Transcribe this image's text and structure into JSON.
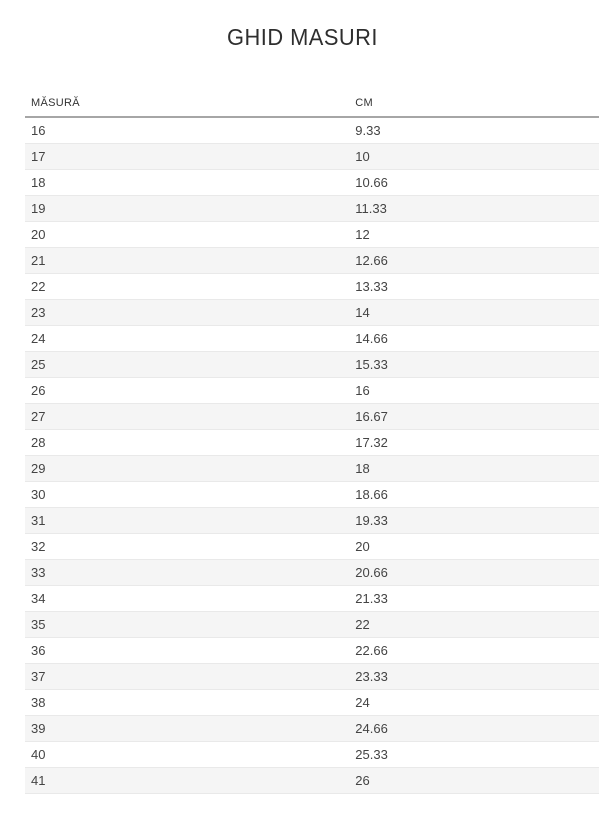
{
  "page": {
    "title": "GHID MASURI"
  },
  "table": {
    "headers": [
      "MĂSURĂ",
      "CM"
    ],
    "rows": [
      [
        "16",
        "9.33"
      ],
      [
        "17",
        "10"
      ],
      [
        "18",
        "10.66"
      ],
      [
        "19",
        "11.33"
      ],
      [
        "20",
        "12"
      ],
      [
        "21",
        "12.66"
      ],
      [
        "22",
        "13.33"
      ],
      [
        "23",
        "14"
      ],
      [
        "24",
        "14.66"
      ],
      [
        "25",
        "15.33"
      ],
      [
        "26",
        "16"
      ],
      [
        "27",
        "16.67"
      ],
      [
        "28",
        "17.32"
      ],
      [
        "29",
        "18"
      ],
      [
        "30",
        "18.66"
      ],
      [
        "31",
        "19.33"
      ],
      [
        "32",
        "20"
      ],
      [
        "33",
        "20.66"
      ],
      [
        "34",
        "21.33"
      ],
      [
        "35",
        "22"
      ],
      [
        "36",
        "22.66"
      ],
      [
        "37",
        "23.33"
      ],
      [
        "38",
        "24"
      ],
      [
        "39",
        "24.66"
      ],
      [
        "40",
        "25.33"
      ],
      [
        "41",
        "26"
      ]
    ]
  },
  "colors": {
    "title_text": "#2e2e2e",
    "header_text": "#333333",
    "row_text": "#444444",
    "stripe_background": "#f5f5f5",
    "header_underline": "#a6a6a6",
    "row_border": "#e9e9e9",
    "page_background": "#ffffff"
  }
}
